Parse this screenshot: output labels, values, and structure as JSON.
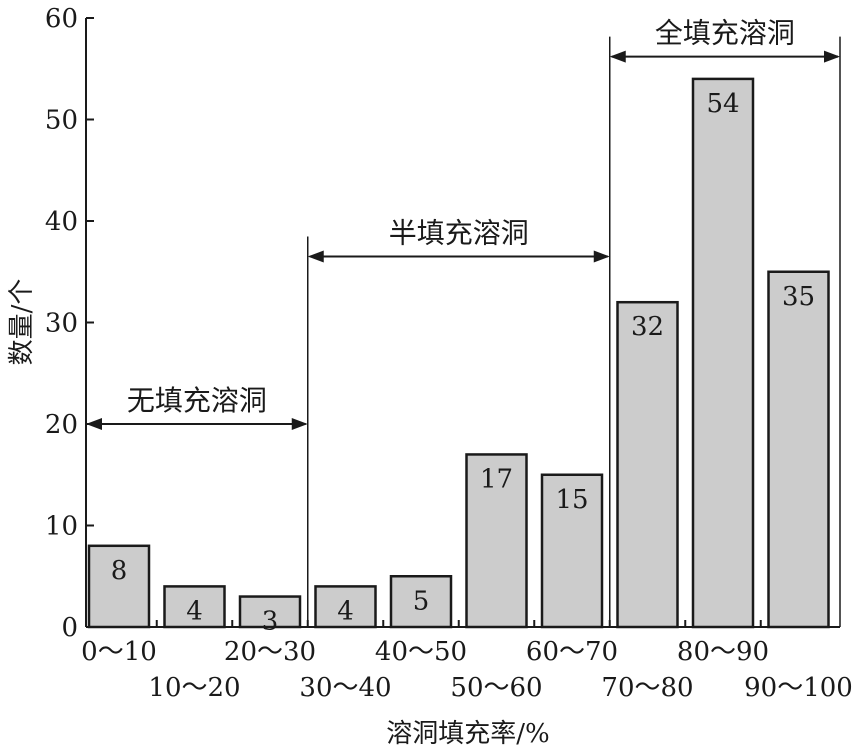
{
  "chart_data": {
    "type": "bar",
    "xlabel": "溶洞填充率/%",
    "ylabel": "数量/个",
    "ylim": [
      0,
      60
    ],
    "yticks": [
      "0",
      "10",
      "20",
      "30",
      "40",
      "50",
      "60"
    ],
    "categories": [
      "0～10",
      "10～20",
      "20～30",
      "30～40",
      "40～50",
      "50～60",
      "60～70",
      "70～80",
      "80～90",
      "90～100"
    ],
    "values": [
      8,
      4,
      3,
      4,
      5,
      17,
      15,
      32,
      54,
      35
    ],
    "value_labels": [
      "8",
      "4",
      "3",
      "4",
      "5",
      "17",
      "15",
      "32",
      "54",
      "35"
    ],
    "bar_color": "#cccccc",
    "grid": false,
    "annotations": [
      {
        "text": "无填充溶洞",
        "from_category": 0,
        "to_category": 2,
        "y": 20
      },
      {
        "text": "半填充溶洞",
        "from_category": 3,
        "to_category": 6,
        "y": 36.5
      },
      {
        "text": "全填充溶洞",
        "from_category": 7,
        "to_category": 9,
        "y": 56.2
      }
    ]
  }
}
